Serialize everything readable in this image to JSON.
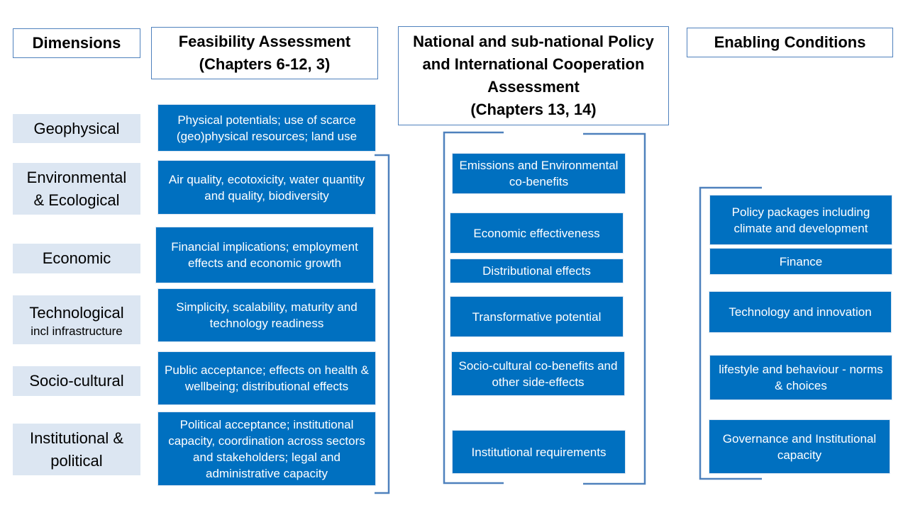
{
  "headers": {
    "dimensions": "Dimensions",
    "feasibility": "Feasibility Assessment\n(Chapters 6-12, 3)",
    "policy": "National and sub-national Policy\nand International Cooperation\nAssessment\n(Chapters 13, 14)",
    "enabling": "Enabling Conditions"
  },
  "dimensions": [
    {
      "label": "Geophysical",
      "sub": ""
    },
    {
      "label": "Environmental\n& Ecological",
      "sub": ""
    },
    {
      "label": "Economic",
      "sub": ""
    },
    {
      "label": "Technological",
      "sub": "incl infrastructure"
    },
    {
      "label": "Socio-cultural",
      "sub": ""
    },
    {
      "label": "Institutional &\npolitical",
      "sub": ""
    }
  ],
  "feasibility": [
    "Physical potentials; use of scarce (geo)physical resources; land use",
    "Air quality, ecotoxicity, water quantity and quality, biodiversity",
    "Financial implications; employment effects and economic growth",
    "Simplicity, scalability, maturity and technology readiness",
    "Public acceptance; effects on health & wellbeing; distributional effects",
    "Political acceptance; institutional capacity, coordination across sectors and stakeholders; legal and administrative capacity"
  ],
  "policy": [
    "Emissions and Environmental co-benefits",
    "Economic effectiveness",
    "Distributional effects",
    "Transformative potential",
    "Socio-cultural co-benefits and other side-effects",
    "Institutional requirements"
  ],
  "enabling": [
    "Policy packages including climate and development",
    "Finance",
    "Technology and innovation",
    "lifestyle and behaviour - norms & choices",
    "Governance and Institutional capacity"
  ],
  "colors": {
    "box_fill": "#0070c0",
    "dimension_fill": "#dce6f2",
    "outline": "#4f81bd"
  }
}
